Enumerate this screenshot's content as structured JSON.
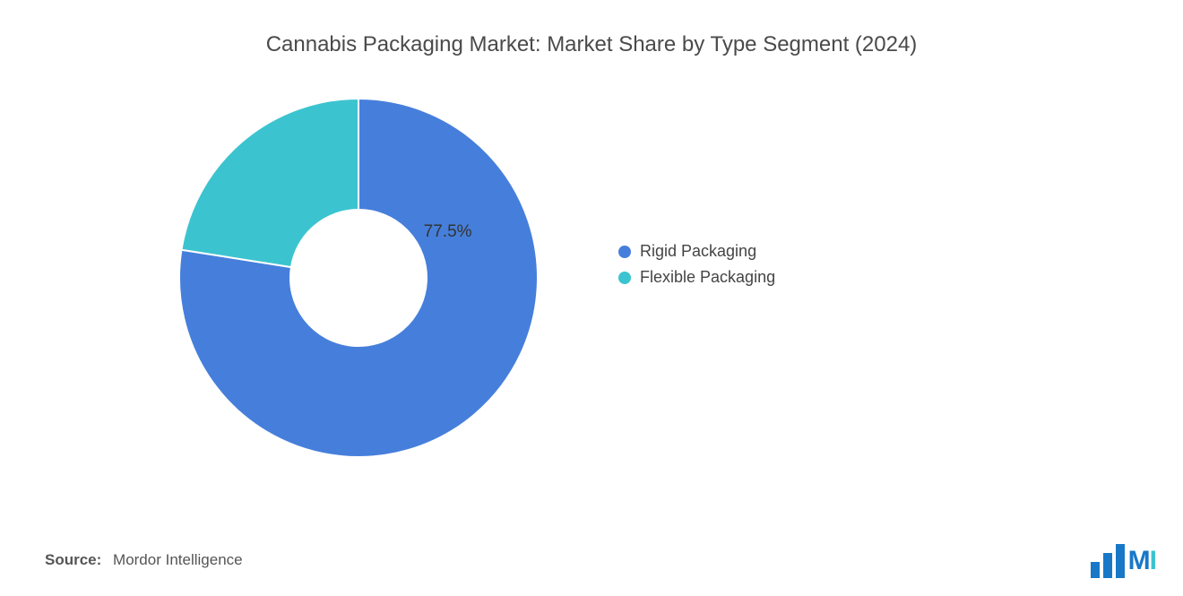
{
  "title": "Cannabis Packaging Market: Market Share by Type Segment (2024)",
  "chart": {
    "type": "donut",
    "background_color": "#ffffff",
    "inner_radius_ratio": 0.38,
    "outer_radius": 200,
    "start_angle_deg": 90,
    "direction": "clockwise",
    "slices": [
      {
        "label": "Rigid Packaging",
        "value": 77.5,
        "color": "#467fdb",
        "data_label": "77.5%",
        "show_data_label": true
      },
      {
        "label": "Flexible Packaging",
        "value": 22.5,
        "color": "#3bc4cf",
        "data_label": "",
        "show_data_label": false
      }
    ],
    "data_label_fontsize": 19,
    "data_label_color": "#333333",
    "gap_color": "#ffffff",
    "gap_width": 2
  },
  "legend": {
    "position": "right",
    "items": [
      {
        "label": "Rigid Packaging",
        "color": "#467fdb"
      },
      {
        "label": "Flexible Packaging",
        "color": "#3bc4cf"
      }
    ],
    "swatch_shape": "circle",
    "swatch_size": 14,
    "fontsize": 18,
    "text_color": "#444444"
  },
  "footer": {
    "source_label": "Source:",
    "source_value": "Mordor Intelligence"
  },
  "logo": {
    "bar_color": "#1878c7",
    "text_m": "M",
    "text_i": "I",
    "m_color": "#1878c7",
    "i_color": "#3bc4cf"
  }
}
